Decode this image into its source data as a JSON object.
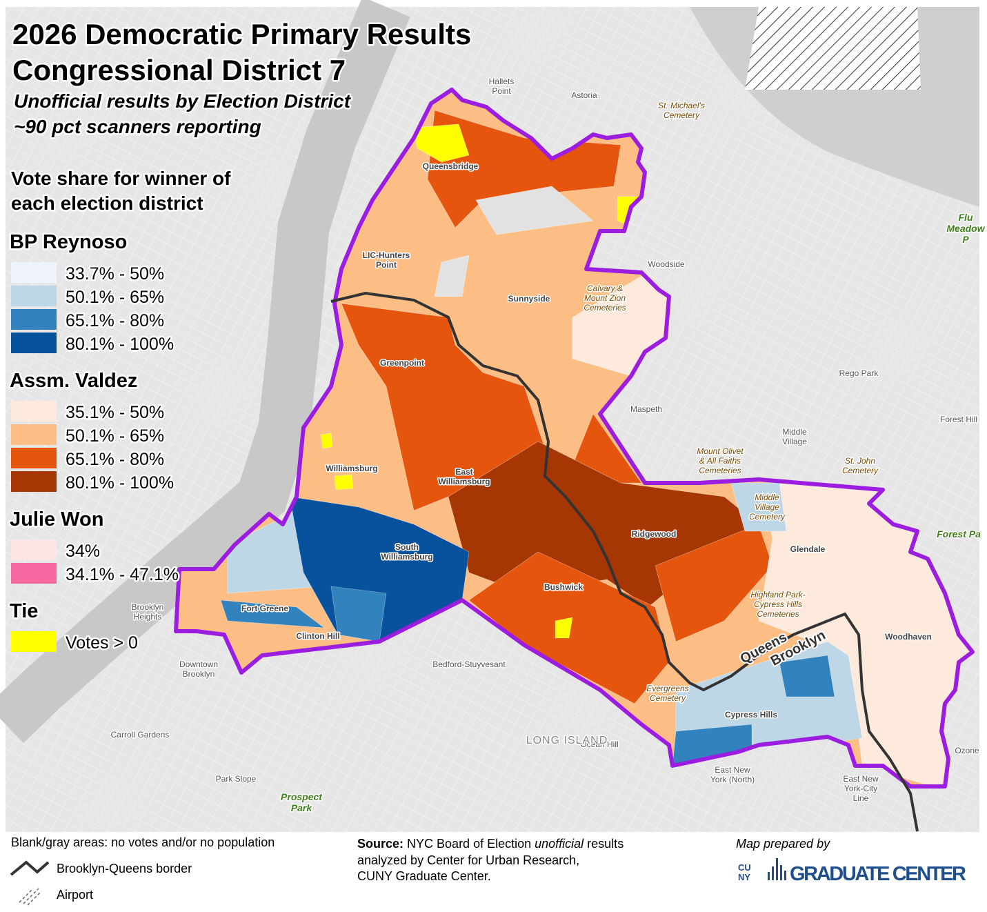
{
  "title": [
    "2026 Democratic Primary Results",
    "Congressional District 7"
  ],
  "subtitle": [
    "Unofficial results by Election District",
    "~90 pct scanners reporting"
  ],
  "legend": {
    "heading": [
      "Vote share for winner of",
      "each election district"
    ],
    "groups": [
      {
        "name": "BP Reynoso",
        "items": [
          {
            "label": "33.7% - 50%",
            "color": "#eef3fc"
          },
          {
            "label": "50.1% - 65%",
            "color": "#bdd7e7"
          },
          {
            "label": "65.1% - 80%",
            "color": "#3182bd"
          },
          {
            "label": "80.1% - 100%",
            "color": "#08519c"
          }
        ]
      },
      {
        "name": "Assm. Valdez",
        "items": [
          {
            "label": "35.1% - 50%",
            "color": "#feeadd"
          },
          {
            "label": "50.1% - 65%",
            "color": "#fdbe85"
          },
          {
            "label": "65.1% - 80%",
            "color": "#e6550d"
          },
          {
            "label": "80.1% - 100%",
            "color": "#a63603"
          }
        ]
      },
      {
        "name": "Julie Won",
        "items": [
          {
            "label": "34%",
            "color": "#fde5e5"
          },
          {
            "label": "34.1% - 47.1%",
            "color": "#f768a1"
          }
        ]
      },
      {
        "name": "Tie",
        "items": [
          {
            "label": "Votes > 0",
            "color": "#ffff00"
          }
        ]
      }
    ]
  },
  "places": [
    {
      "label": [
        "Hallets",
        "Point"
      ]
    },
    {
      "label": [
        "Astoria"
      ]
    },
    {
      "label": [
        "St. Michael's",
        "Cemetery"
      ]
    },
    {
      "label": [
        "Queensbridge"
      ]
    },
    {
      "label": [
        "LIC-Hunters",
        "Point"
      ]
    },
    {
      "label": [
        "Woodside"
      ]
    },
    {
      "label": [
        "Sunnyside"
      ]
    },
    {
      "label": [
        "Calvary &",
        "Mount Zion",
        "Cemeteries"
      ]
    },
    {
      "label": [
        "Greenpoint"
      ]
    },
    {
      "label": [
        "Rego Park"
      ]
    },
    {
      "label": [
        "Maspeth"
      ]
    },
    {
      "label": [
        "Forest Hill"
      ]
    },
    {
      "label": [
        "Middle",
        "Village"
      ]
    },
    {
      "label": [
        "Mount Olivet",
        "& All Faiths",
        "Cemeteries"
      ]
    },
    {
      "label": [
        "St. John",
        "Cemetery"
      ]
    },
    {
      "label": [
        "Williamsburg"
      ]
    },
    {
      "label": [
        "East",
        "Williamsburg"
      ]
    },
    {
      "label": [
        "Middle",
        "Village",
        "Cemetery"
      ]
    },
    {
      "label": [
        "Ridgewood"
      ]
    },
    {
      "label": [
        "Forest Pa"
      ]
    },
    {
      "label": [
        "South",
        "Williamsburg"
      ]
    },
    {
      "label": [
        "Glendale"
      ]
    },
    {
      "label": [
        "Bushwick"
      ]
    },
    {
      "label": [
        "Highland Park-",
        "Cypress Hills",
        "Cemeteries"
      ]
    },
    {
      "label": [
        "Brooklyn",
        "Heights"
      ]
    },
    {
      "label": [
        "Fort Greene"
      ]
    },
    {
      "label": [
        "Woodhaven"
      ]
    },
    {
      "label": [
        "Clinton Hill"
      ]
    },
    {
      "label": [
        "Downtown",
        "Brooklyn"
      ]
    },
    {
      "label": [
        "Bedford-Stuyvesant"
      ]
    },
    {
      "label": [
        "Evergreens",
        "Cemetery"
      ]
    },
    {
      "label": [
        "Cypress Hills"
      ]
    },
    {
      "label": [
        "Carroll Gardens"
      ]
    },
    {
      "label": [
        "Ocean Hill"
      ]
    },
    {
      "label": [
        "Ozone"
      ]
    },
    {
      "label": [
        "East New",
        "York (North)"
      ]
    },
    {
      "label": [
        "Park Slope"
      ]
    },
    {
      "label": [
        "East New",
        "York-City",
        "Line"
      ]
    },
    {
      "label": [
        "Prospect",
        "Park"
      ]
    },
    {
      "label": [
        "Flu",
        "Meadow",
        "P"
      ]
    },
    {
      "label": [
        "LONG ISLAND"
      ]
    }
  ],
  "border_labels": [
    "Queens",
    "Brooklyn"
  ],
  "notes": {
    "blank": "Blank/gray areas: no votes and/or no population",
    "border": "Brooklyn-Queens border",
    "airport": "Airport"
  },
  "source": {
    "label": "Source:",
    "line1": [
      "NYC Board of Election",
      "unofficial",
      "results"
    ],
    "line2": "analyzed by Center for Urban Research,",
    "line3": "CUNY Graduate Center."
  },
  "credit": {
    "prepared": "Map prepared by",
    "cuny": [
      "CU",
      "NY"
    ],
    "org": "GRADUATE CENTER"
  }
}
